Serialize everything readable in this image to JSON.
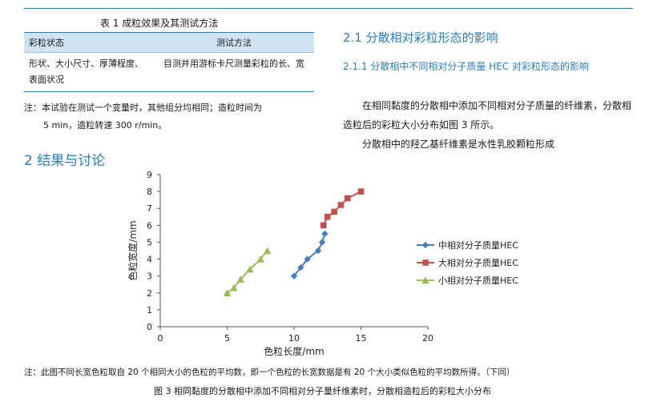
{
  "table": {
    "title": "表 1  成粒效果及其测试方法",
    "headers": [
      "彩粒状态",
      "测试方法"
    ],
    "row": [
      "形状、大小尺寸、厚薄程度、表面状况",
      "目测并用游标卡尺测量彩粒的长、宽"
    ]
  },
  "note": {
    "line1": "注：本试验在测试一个变量时，其他组分均相同；造粒时间为",
    "line2": "5 min，造粒转速 300 r/min。"
  },
  "section2": "2 结果与讨论",
  "section21": "2.1 分散相对彩粒形态的影响",
  "section211": "2.1.1 分散相中不同相对分子质量 HEC 对彩粒形态的影响",
  "para1": "在相同黏度的分散相中添加不同相对分子质量的纤维素，分散相造粒后的彩粒大小分布如图 3 所示。",
  "para2": "分散相中的羟乙基纤维素是水性乳胶颗粒形成",
  "chart_data": {
    "type": "scatter",
    "xlabel": "色粒长度/mm",
    "ylabel": "色粒宽度/mm",
    "xlim": [
      0,
      20
    ],
    "ylim": [
      0,
      9
    ],
    "xticks": [
      0,
      5,
      10,
      15,
      20
    ],
    "yticks": [
      0,
      1,
      2,
      3,
      4,
      5,
      6,
      7,
      8,
      9
    ],
    "legend_position": "right",
    "series": [
      {
        "name": "中相对分子质量HEC",
        "color": "#4a7ebb",
        "marker": "diamond",
        "points": [
          [
            10,
            3
          ],
          [
            10.5,
            3.5
          ],
          [
            11,
            4
          ],
          [
            11.8,
            4.5
          ],
          [
            12.1,
            5
          ],
          [
            12.3,
            5.5
          ]
        ]
      },
      {
        "name": "大相对分子质量HEC",
        "color": "#c0504d",
        "marker": "square",
        "points": [
          [
            12.2,
            6
          ],
          [
            12.5,
            6.5
          ],
          [
            13,
            6.8
          ],
          [
            13.5,
            7.2
          ],
          [
            14,
            7.6
          ],
          [
            15,
            8
          ]
        ]
      },
      {
        "name": "小相对分子质量HEC",
        "color": "#9bbb59",
        "marker": "triangle",
        "points": [
          [
            5,
            2
          ],
          [
            5.5,
            2.3
          ],
          [
            6,
            2.8
          ],
          [
            6.7,
            3.4
          ],
          [
            7.5,
            4
          ],
          [
            8,
            4.5
          ]
        ]
      }
    ]
  },
  "footnote": "注：此图不同长宽色粒取自 20 个相同大小的色粒的平均数，即一个色粒的长宽数据是有 20 个大小类似色粒的平均数所得。（下同）",
  "caption": "图 3  相同黏度的分散相中添加不同相对分子量纤维素时，分散相造粒后的彩粒大小分布"
}
